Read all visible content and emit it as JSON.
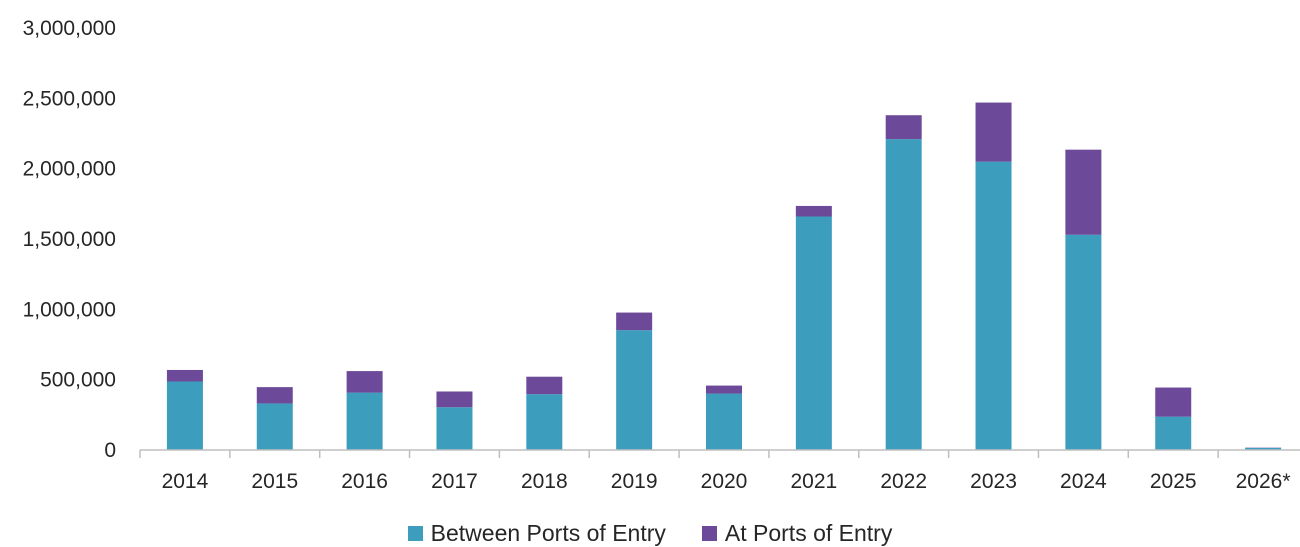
{
  "chart_data": {
    "type": "bar",
    "stacked": true,
    "categories": [
      "2014",
      "2015",
      "2016",
      "2017",
      "2018",
      "2019",
      "2020",
      "2021",
      "2022",
      "2023",
      "2024",
      "2025",
      "2026*"
    ],
    "series": [
      {
        "name": "Between Ports of Entry",
        "color": "#3d9dbd",
        "values": [
          487000,
          331000,
          408000,
          304000,
          397000,
          852000,
          401000,
          1660000,
          2210000,
          2050000,
          1530000,
          237000,
          15000
        ]
      },
      {
        "name": "At Ports of Entry",
        "color": "#6c4a99",
        "values": [
          82000,
          116000,
          153000,
          112000,
          124000,
          125000,
          57000,
          75000,
          170000,
          420000,
          605000,
          207000,
          2000
        ]
      }
    ],
    "y_ticks": [
      "0",
      "500,000",
      "1,000,000",
      "1,500,000",
      "2,000,000",
      "2,500,000",
      "3,000,000"
    ],
    "ylim": [
      0,
      3000000
    ],
    "grid": false,
    "legend_position": "bottom"
  }
}
